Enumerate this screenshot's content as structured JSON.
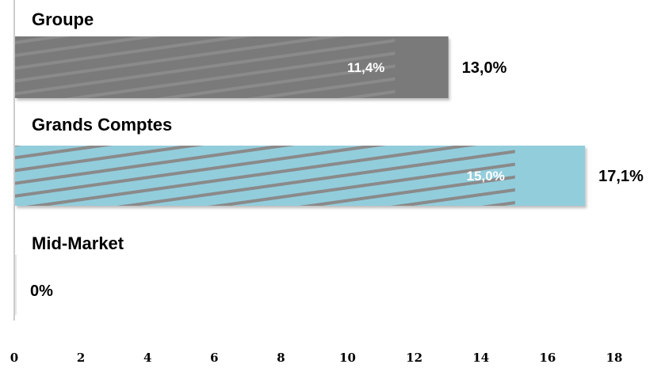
{
  "chart_data": {
    "type": "bar",
    "orientation": "horizontal",
    "categories": [
      "Groupe",
      "Grands Comptes",
      "Mid-Market"
    ],
    "series": [
      {
        "values": [
          13.0,
          17.1,
          0
        ],
        "labels": [
          "13,0%",
          "17,1%",
          "0%"
        ]
      },
      {
        "values": [
          11.4,
          15.0,
          null
        ],
        "labels": [
          "11,4%",
          "15,0%",
          ""
        ]
      }
    ],
    "xlim": [
      0,
      18
    ],
    "xticks": [
      "0",
      "2",
      "4",
      "6",
      "8",
      "10",
      "12",
      "14",
      "16",
      "18"
    ],
    "colors": {
      "Groupe": "#7a7a7a",
      "Grands Comptes": "#92cddc",
      "hatch": "#888888"
    },
    "grid": false
  }
}
